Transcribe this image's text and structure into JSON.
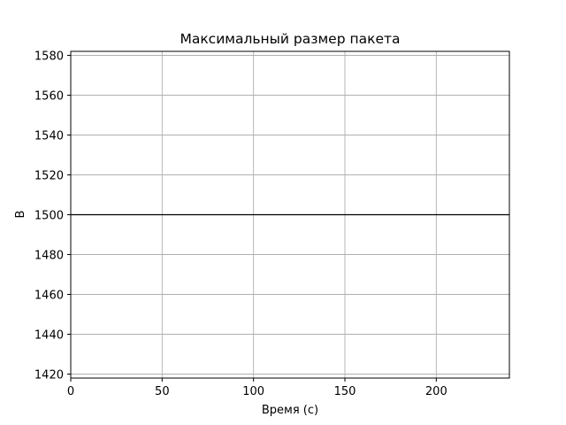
{
  "chart_data": {
    "type": "line",
    "title": "Максимальный размер пакета",
    "xlabel": "Время (с)",
    "ylabel": "B",
    "xlim": [
      0,
      240
    ],
    "ylim": [
      1418,
      1582
    ],
    "xticks": [
      0,
      50,
      100,
      150,
      200
    ],
    "yticks": [
      1420,
      1440,
      1460,
      1480,
      1500,
      1520,
      1540,
      1560,
      1580
    ],
    "grid": true,
    "series": [
      {
        "x": [
          0,
          240
        ],
        "y": [
          1500,
          1500
        ],
        "color": "#000000"
      }
    ]
  }
}
